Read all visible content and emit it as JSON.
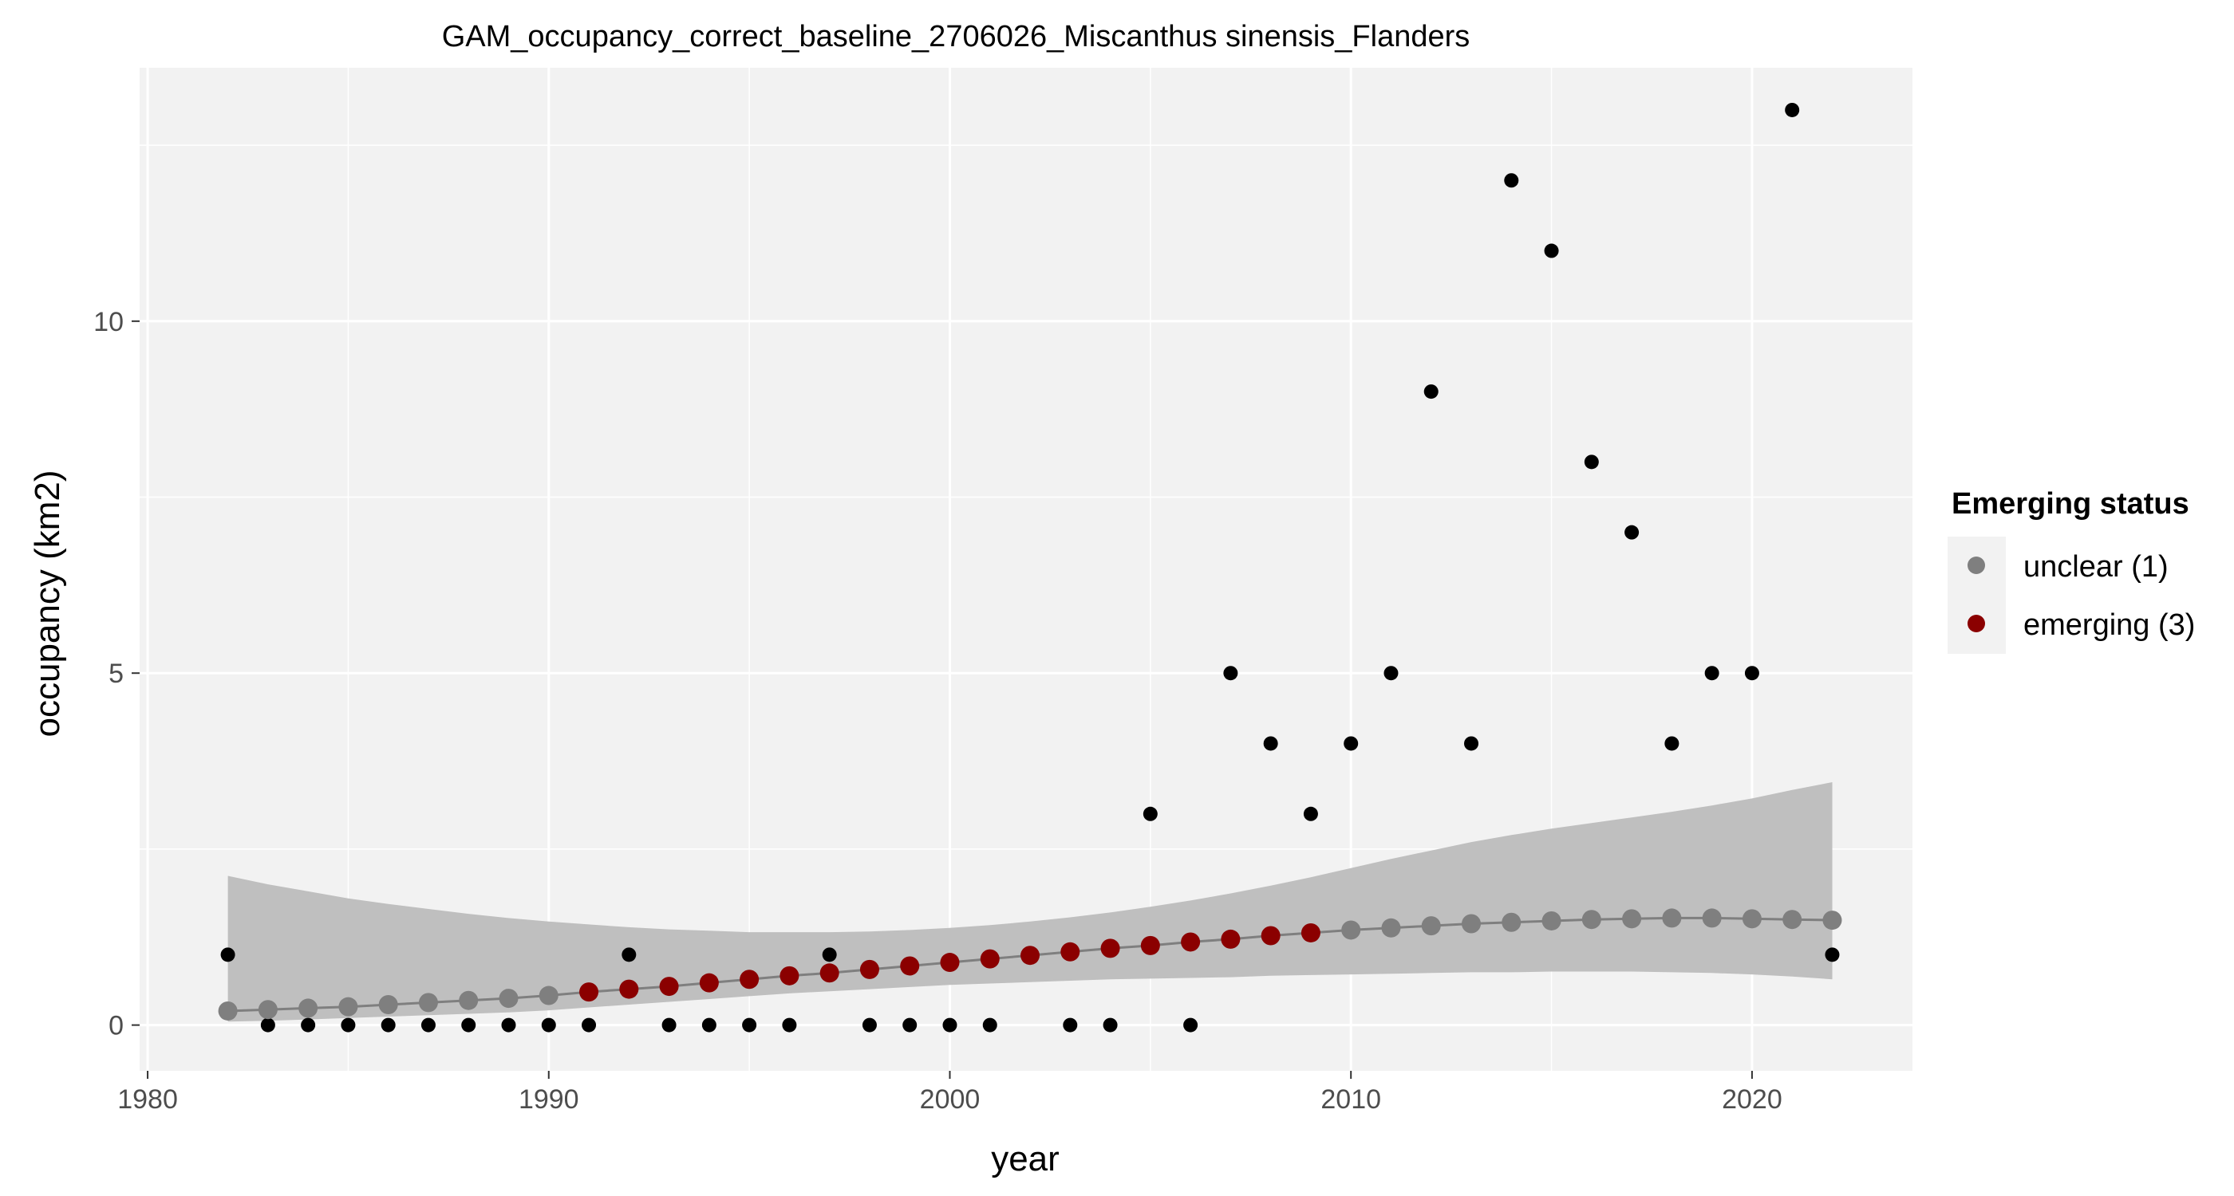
{
  "chart_data": {
    "type": "scatter",
    "title": "GAM_occupancy_correct_baseline_2706026_Miscanthus sinensis_Flanders",
    "xlabel": "year",
    "ylabel": "occupancy (km2)",
    "xlim": [
      1979.8,
      2024.0
    ],
    "ylim": [
      -0.65,
      13.6
    ],
    "x_ticks": [
      1980,
      1990,
      2000,
      2010,
      2020
    ],
    "y_ticks": [
      0,
      5,
      10
    ],
    "x_tick_labels": [
      "1980",
      "1990",
      "2000",
      "2010",
      "2020"
    ],
    "y_tick_labels": [
      "0",
      "5",
      "10"
    ],
    "grid": true,
    "legend": {
      "title": "Emerging status",
      "position": "right",
      "entries": [
        {
          "label": "unclear (1)",
          "color": "#7f7f7f"
        },
        {
          "label": "emerging (3)",
          "color": "#8b0000"
        }
      ]
    },
    "colors": {
      "panel_background": "#f2f2f2",
      "grid": "#ffffff",
      "ribbon": "#bfbfbf",
      "fit_line": "#7f7f7f",
      "observed": "#000000",
      "unclear": "#7f7f7f",
      "emerging": "#8b0000"
    },
    "observed": {
      "x": [
        1982,
        1983,
        1984,
        1985,
        1986,
        1987,
        1988,
        1989,
        1990,
        1991,
        1992,
        1993,
        1994,
        1995,
        1996,
        1997,
        1998,
        1999,
        2000,
        2001,
        2003,
        2004,
        2005,
        2006,
        2007,
        2008,
        2009,
        2010,
        2011,
        2012,
        2013,
        2014,
        2015,
        2016,
        2017,
        2018,
        2019,
        2020,
        2021,
        2022
      ],
      "y": [
        1,
        0,
        0,
        0,
        0,
        0,
        0,
        0,
        0,
        0,
        1,
        0,
        0,
        0,
        0,
        1,
        0,
        0,
        0,
        0,
        0,
        0,
        3,
        0,
        5,
        4,
        3,
        4,
        5,
        9,
        4,
        12,
        11,
        8,
        7,
        4,
        5,
        5,
        13,
        1
      ]
    },
    "fit": {
      "x": [
        1982,
        1983,
        1984,
        1985,
        1986,
        1987,
        1988,
        1989,
        1990,
        1991,
        1992,
        1993,
        1994,
        1995,
        1996,
        1997,
        1998,
        1999,
        2000,
        2001,
        2002,
        2003,
        2004,
        2005,
        2006,
        2007,
        2008,
        2009,
        2010,
        2011,
        2012,
        2013,
        2014,
        2015,
        2016,
        2017,
        2018,
        2019,
        2020,
        2021,
        2022
      ],
      "y": [
        0.2,
        0.22,
        0.24,
        0.26,
        0.29,
        0.32,
        0.35,
        0.38,
        0.42,
        0.47,
        0.51,
        0.55,
        0.6,
        0.65,
        0.7,
        0.74,
        0.79,
        0.84,
        0.89,
        0.94,
        0.99,
        1.04,
        1.09,
        1.13,
        1.18,
        1.22,
        1.27,
        1.31,
        1.35,
        1.38,
        1.41,
        1.44,
        1.46,
        1.48,
        1.5,
        1.51,
        1.52,
        1.52,
        1.51,
        1.5,
        1.49
      ],
      "status": [
        "unclear",
        "unclear",
        "unclear",
        "unclear",
        "unclear",
        "unclear",
        "unclear",
        "unclear",
        "unclear",
        "emerging",
        "emerging",
        "emerging",
        "emerging",
        "emerging",
        "emerging",
        "emerging",
        "emerging",
        "emerging",
        "emerging",
        "emerging",
        "emerging",
        "emerging",
        "emerging",
        "emerging",
        "emerging",
        "emerging",
        "emerging",
        "emerging",
        "unclear",
        "unclear",
        "unclear",
        "unclear",
        "unclear",
        "unclear",
        "unclear",
        "unclear",
        "unclear",
        "unclear",
        "unclear",
        "unclear",
        "unclear"
      ],
      "lower": [
        0.05,
        0.06,
        0.08,
        0.1,
        0.12,
        0.14,
        0.16,
        0.18,
        0.21,
        0.25,
        0.29,
        0.33,
        0.37,
        0.41,
        0.45,
        0.48,
        0.51,
        0.54,
        0.57,
        0.59,
        0.61,
        0.63,
        0.65,
        0.66,
        0.67,
        0.68,
        0.7,
        0.71,
        0.72,
        0.73,
        0.74,
        0.75,
        0.75,
        0.76,
        0.76,
        0.76,
        0.75,
        0.74,
        0.72,
        0.69,
        0.65
      ],
      "upper": [
        2.12,
        2.0,
        1.9,
        1.8,
        1.72,
        1.65,
        1.58,
        1.52,
        1.47,
        1.43,
        1.39,
        1.36,
        1.34,
        1.32,
        1.32,
        1.32,
        1.33,
        1.35,
        1.38,
        1.42,
        1.47,
        1.53,
        1.6,
        1.68,
        1.77,
        1.87,
        1.98,
        2.1,
        2.23,
        2.36,
        2.48,
        2.6,
        2.7,
        2.79,
        2.87,
        2.95,
        3.03,
        3.12,
        3.22,
        3.34,
        3.45
      ]
    }
  }
}
